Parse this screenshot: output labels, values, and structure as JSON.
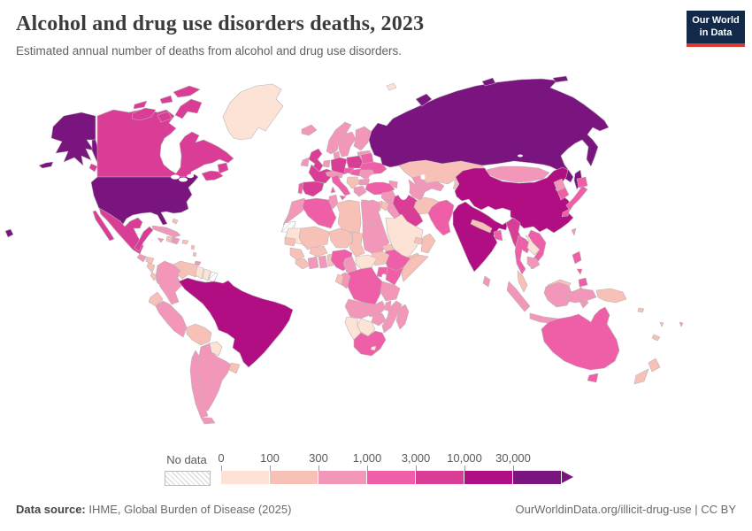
{
  "header": {
    "title": "Alcohol and drug use disorders deaths, 2023",
    "subtitle": "Estimated annual number of deaths from alcohol and drug use disorders.",
    "logo_line1": "Our World",
    "logo_line2": "in Data",
    "logo_bg": "#12294a",
    "logo_red": "#d93a34"
  },
  "footer": {
    "source_label": "Data source:",
    "source_text": " IHME, Global Burden of Disease (2025)",
    "link_text": "OurWorldinData.org/illicit-drug-use | CC BY"
  },
  "legend": {
    "no_data_label": "No data",
    "tick_labels": [
      "0",
      "100",
      "300",
      "1,000",
      "3,000",
      "10,000",
      "30,000"
    ]
  },
  "chart_data": {
    "type": "choropleth",
    "title": "Alcohol and drug use disorders deaths, 2023",
    "subtitle": "Estimated annual number of deaths from alcohol and drug use disorders.",
    "legend_position": "bottom",
    "bins": [
      {
        "label": "0",
        "range": "0–100",
        "color": "#fce3d6"
      },
      {
        "label": "100",
        "range": "100–300",
        "color": "#f8c1b7"
      },
      {
        "label": "300",
        "range": "300–1,000",
        "color": "#f397ba"
      },
      {
        "label": "1,000",
        "range": "1,000–3,000",
        "color": "#ee5fa7"
      },
      {
        "label": "3,000",
        "range": "3,000–10,000",
        "color": "#d93d96"
      },
      {
        "label": "10,000",
        "range": "10,000–30,000",
        "color": "#b20e83"
      },
      {
        "label": "30,000",
        "range": "30,000+",
        "color": "#7a157f"
      }
    ],
    "no_data_countries": [
      "western-sahara",
      "french-guiana"
    ],
    "countries": {
      "united-states": 7,
      "canada": 5,
      "greenland": 1,
      "mexico": 5,
      "guatemala": 3,
      "honduras": 2,
      "nicaragua": 2,
      "costa-rica": 2,
      "panama": 3,
      "cuba": 3,
      "haiti": 2,
      "dominican-republic": 3,
      "jamaica": 3,
      "puerto-rico": 2,
      "bahamas": 2,
      "lesser-antilles": 2,
      "trinidad-and-tobago": 3,
      "colombia": 3,
      "venezuela": 2,
      "guyana": 1,
      "suriname": 1,
      "ecuador": 2,
      "peru": 3,
      "brazil": 6,
      "bolivia": 2,
      "paraguay": 1,
      "chile": 3,
      "argentina": 3,
      "uruguay": 2,
      "iceland": 3,
      "ireland": 3,
      "united-kingdom": 5,
      "norway": 3,
      "sweden": 3,
      "finland": 3,
      "denmark": 3,
      "baltic-states": 3,
      "benelux": 3,
      "germany": 5,
      "poland": 5,
      "czechia": 4,
      "belarus": 4,
      "ukraine": 4,
      "france": 5,
      "spain": 5,
      "portugal": 4,
      "italy": 4,
      "switzerland-austria": 3,
      "hungary-slovakia": 4,
      "romania": 3,
      "balkans": 2,
      "bulgaria": 3,
      "greece": 3,
      "turkey": 4,
      "russia": 7,
      "kazakhstan": 2,
      "uzbekistan": 3,
      "turkmenistan": 3,
      "kyrgyzstan": 2,
      "tajikistan": 2,
      "caucasus": 3,
      "syria": 3,
      "iraq": 3,
      "iran": 5,
      "jordan": 2,
      "israel": 2,
      "saudi-arabia": 1,
      "yemen": 2,
      "oman": 2,
      "uae": 2,
      "afghanistan": 2,
      "pakistan": 4,
      "india": 6,
      "nepal": 2,
      "bangladesh": 4,
      "sri-lanka": 3,
      "china": 6,
      "mongolia": 3,
      "north-korea": 3,
      "south-korea": 4,
      "japan": 4,
      "taiwan": 3,
      "myanmar": 5,
      "thailand": 4,
      "laos": 1,
      "vietnam": 4,
      "cambodia": 3,
      "malaysia": 2,
      "philippines": 4,
      "indonesia": 3,
      "papua-new-guinea": 2,
      "australia": 4,
      "new-zealand": 2,
      "fiji": 3,
      "new-caledonia": 2,
      "vanuatu": 2,
      "solomon-islands": 2,
      "morocco": 3,
      "algeria": 4,
      "tunisia": 3,
      "libya": 2,
      "egypt": 3,
      "mauritania": 1,
      "mali": 2,
      "niger": 2,
      "chad": 2,
      "sudan": 3,
      "eritrea": 2,
      "ethiopia": 4,
      "somalia": 2,
      "south-sudan": 2,
      "senegal": 2,
      "guinea": 2,
      "sierra-leone-liberia": 2,
      "ivory-coast": 3,
      "ghana": 3,
      "benin-togo": 2,
      "burkina-faso": 2,
      "nigeria": 4,
      "cameroon": 3,
      "central-african-republic": 1,
      "uganda": 4,
      "kenya": 4,
      "drc": 4,
      "congo": 3,
      "gabon": 2,
      "angola": 3,
      "zambia": 3,
      "tanzania": 3,
      "malawi": 3,
      "mozambique": 3,
      "zimbabwe": 3,
      "botswana": 1,
      "namibia": 1,
      "south-africa": 4,
      "lesotho": 1,
      "madagascar": 3,
      "svalbard": 1
    }
  }
}
